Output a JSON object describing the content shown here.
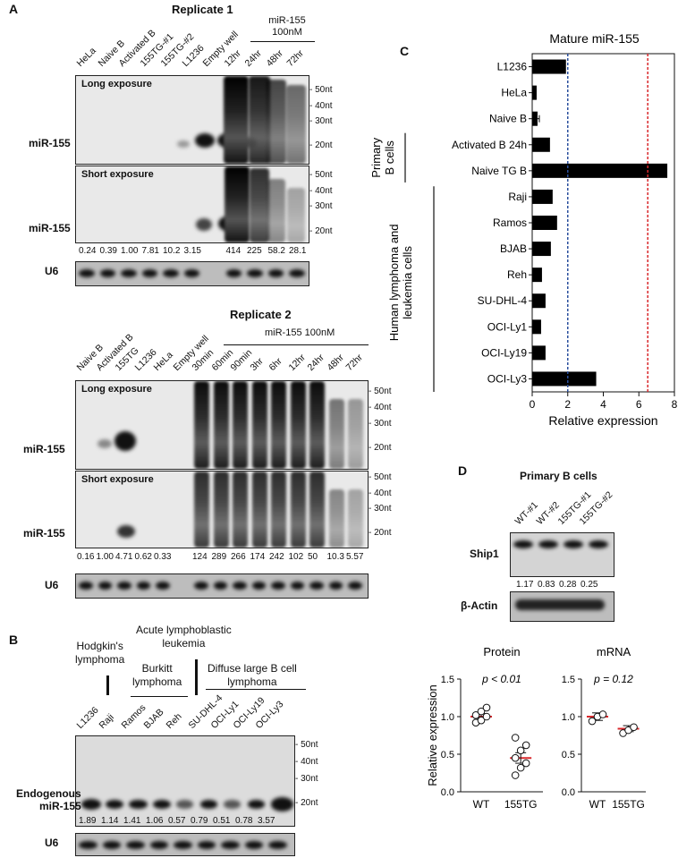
{
  "panelA": {
    "label": "A",
    "rep1": {
      "title": "Replicate 1",
      "lanes": [
        "HeLa",
        "Naive B",
        "Activated B",
        "155TG-#1",
        "155TG-#2",
        "L1236",
        "Empty well",
        "12hr",
        "24hr",
        "48hr",
        "72hr"
      ],
      "treat_header": "miR-155\n100nM",
      "long": "Long exposure",
      "short": "Short exposure",
      "row": "miR-155",
      "quants": [
        "0.24",
        "0.39",
        "1.00",
        "7.81",
        "10.2",
        "3.15",
        "",
        "414",
        "225",
        "58.2",
        "28.1"
      ],
      "u6": "U6",
      "markers": [
        "50nt",
        "40nt",
        "30nt",
        "20nt"
      ]
    },
    "rep2": {
      "title": "Replicate 2",
      "lanes": [
        "Naive B",
        "Activated B",
        "155TG",
        "L1236",
        "HeLa",
        "Empty well",
        "30min",
        "60min",
        "90min",
        "3hr",
        "6hr",
        "12hr",
        "24hr",
        "48hr",
        "72hr"
      ],
      "treat_header": "miR-155 100nM",
      "long": "Long exposure",
      "short": "Short exposure",
      "row": "miR-155",
      "quants": [
        "0.16",
        "1.00",
        "4.71",
        "0.62",
        "0.33",
        "",
        "124",
        "289",
        "266",
        "174",
        "242",
        "102",
        "50",
        "10.3",
        "5.57"
      ],
      "u6": "U6",
      "markers": [
        "50nt",
        "40nt",
        "30nt",
        "20nt"
      ]
    }
  },
  "panelB": {
    "label": "B",
    "groups": [
      "Hodgkin's\nlymphoma",
      "Acute lymphoblastic\nleukemia",
      "Burkitt\nlymphoma",
      "Diffuse large B cell\nlymphoma"
    ],
    "lanes": [
      "L1236",
      "Raji",
      "Ramos",
      "BJAB",
      "Reh",
      "SU-DHL-4",
      "OCI-Ly1",
      "OCI-Ly19",
      "OCI-Ly3"
    ],
    "row": "Endogenous\nmiR-155",
    "quants": [
      "1.89",
      "1.14",
      "1.41",
      "1.06",
      "0.57",
      "0.79",
      "0.51",
      "0.78",
      "3.57"
    ],
    "u6": "U6",
    "markers": [
      "50nt",
      "40nt",
      "30nt",
      "20nt"
    ]
  },
  "panelC": {
    "label": "C",
    "group_primary": "Primary\nB cells",
    "group_human": "Human lymphoma and\nleukemia cells",
    "chart_data": {
      "type": "bar",
      "title": "Mature miR-155",
      "xlabel": "Relative expression",
      "ylabel": "",
      "orientation": "horizontal",
      "categories": [
        "L1236",
        "HeLa",
        "Naive B",
        "Activated B 24h",
        "Naive TG B",
        "Raji",
        "Ramos",
        "BJAB",
        "Reh",
        "SU-DHL-4",
        "OCI-Ly1",
        "OCI-Ly19",
        "OCI-Ly3"
      ],
      "values": [
        1.9,
        0.25,
        0.3,
        1.0,
        7.6,
        1.15,
        1.4,
        1.05,
        0.55,
        0.75,
        0.5,
        0.75,
        3.6
      ],
      "errors": [
        0,
        0,
        0.1,
        0,
        0,
        0,
        0,
        0,
        0,
        0,
        0,
        0,
        0
      ],
      "xlim": [
        0,
        8
      ],
      "xticks": [
        "0",
        "2",
        "4",
        "6",
        "8"
      ],
      "ref_lines": [
        {
          "x": 2,
          "color": "#2a4f9e"
        },
        {
          "x": 6.5,
          "color": "#d9282c"
        }
      ]
    }
  },
  "panelD": {
    "label": "D",
    "title": "Primary B cells",
    "lanes": [
      "WT-#1",
      "WT-#2",
      "155TG-#1",
      "155TG-#2"
    ],
    "ship1": "Ship1",
    "quants": [
      "1.17",
      "0.83",
      "0.28",
      "0.25"
    ],
    "actin": "β-Actin",
    "chart_data": [
      {
        "type": "scatter",
        "title": "Protein",
        "ylabel": "Relative expression",
        "categories": [
          "WT",
          "155TG"
        ],
        "points": [
          [
            0.92,
            0.95,
            1.0,
            1.02,
            1.07,
            1.12
          ],
          [
            0.22,
            0.32,
            0.38,
            0.45,
            0.55,
            0.62,
            0.72
          ]
        ],
        "means": [
          1.0,
          0.45
        ],
        "sem": [
          0.04,
          0.07
        ],
        "ylim": [
          0,
          1.5
        ],
        "yticks": [
          "0.0",
          "0.5",
          "1.0",
          "1.5"
        ],
        "annotation": "p < 0.01"
      },
      {
        "type": "scatter",
        "title": "mRNA",
        "categories": [
          "WT",
          "155TG"
        ],
        "points": [
          [
            0.94,
            1.0,
            1.03
          ],
          [
            0.78,
            0.82,
            0.86
          ]
        ],
        "means": [
          1.0,
          0.84
        ],
        "sem": [
          0.05,
          0.04
        ],
        "ylim": [
          0,
          1.5
        ],
        "yticks": [
          "0.0",
          "0.5",
          "1.0",
          "1.5"
        ],
        "annotation": "p = 0.12"
      }
    ]
  }
}
